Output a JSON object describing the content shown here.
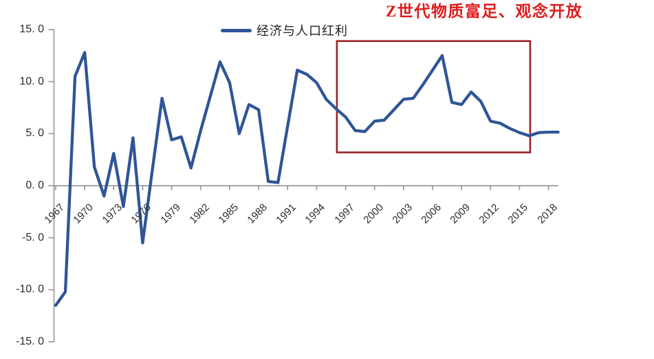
{
  "chart_data": {
    "type": "line",
    "title": "",
    "xlabel": "",
    "ylabel": "",
    "grid": false,
    "background": "#ffffff",
    "axis_color": "#9a9a9a",
    "tick_text_color": "#2b2b2b",
    "xlim": [
      1967,
      2019
    ],
    "ylim": [
      -15,
      15
    ],
    "x": [
      1967,
      1968,
      1969,
      1970,
      1971,
      1972,
      1973,
      1974,
      1975,
      1976,
      1977,
      1978,
      1979,
      1980,
      1981,
      1982,
      1983,
      1984,
      1985,
      1986,
      1987,
      1988,
      1989,
      1990,
      1991,
      1992,
      1993,
      1994,
      1995,
      1996,
      1997,
      1998,
      1999,
      2000,
      2001,
      2002,
      2003,
      2004,
      2005,
      2006,
      2007,
      2008,
      2009,
      2010,
      2011,
      2012,
      2013,
      2014,
      2015,
      2016,
      2017,
      2018,
      2019
    ],
    "series": [
      {
        "name": "经济与人口红利",
        "color": "#2f5597",
        "values": [
          -11.5,
          -10.2,
          10.5,
          12.8,
          1.8,
          -1.0,
          3.1,
          -2.0,
          4.6,
          -5.5,
          1.5,
          8.4,
          4.4,
          4.7,
          1.7,
          5.3,
          8.6,
          11.9,
          9.9,
          5.0,
          7.8,
          7.3,
          0.4,
          0.3,
          5.7,
          11.1,
          10.7,
          9.9,
          8.3,
          7.4,
          6.6,
          5.3,
          5.2,
          6.2,
          6.3,
          7.3,
          8.3,
          8.4,
          9.7,
          11.1,
          12.5,
          8.0,
          7.8,
          9.0,
          8.1,
          6.2,
          6.0,
          5.5,
          5.1,
          4.8,
          5.1,
          5.15,
          5.15
        ]
      }
    ],
    "x_tick_years": [
      1967,
      1970,
      1973,
      1976,
      1979,
      1982,
      1985,
      1988,
      1991,
      1994,
      1997,
      2000,
      2003,
      2006,
      2009,
      2012,
      2015,
      2018
    ],
    "y_ticks": [
      {
        "value": 15,
        "label": "15. 0"
      },
      {
        "value": 10,
        "label": "10. 0"
      },
      {
        "value": 5,
        "label": "5. 0"
      },
      {
        "value": 0,
        "label": "0. 0"
      },
      {
        "value": -5,
        "label": "-5. 0"
      },
      {
        "value": -10,
        "label": "-10. 0"
      },
      {
        "value": -15,
        "label": "-15. 0"
      }
    ],
    "legend": {
      "label": "经济与人口红利",
      "position": "top-center"
    },
    "annotation": {
      "title": "Z世代物质富足、观念开放",
      "title_color": "#dd1c1c",
      "box": {
        "x0": 1996.1,
        "x1": 2016.1,
        "y0": 3.2,
        "y1": 13.9,
        "color": "#9c2123"
      }
    }
  }
}
